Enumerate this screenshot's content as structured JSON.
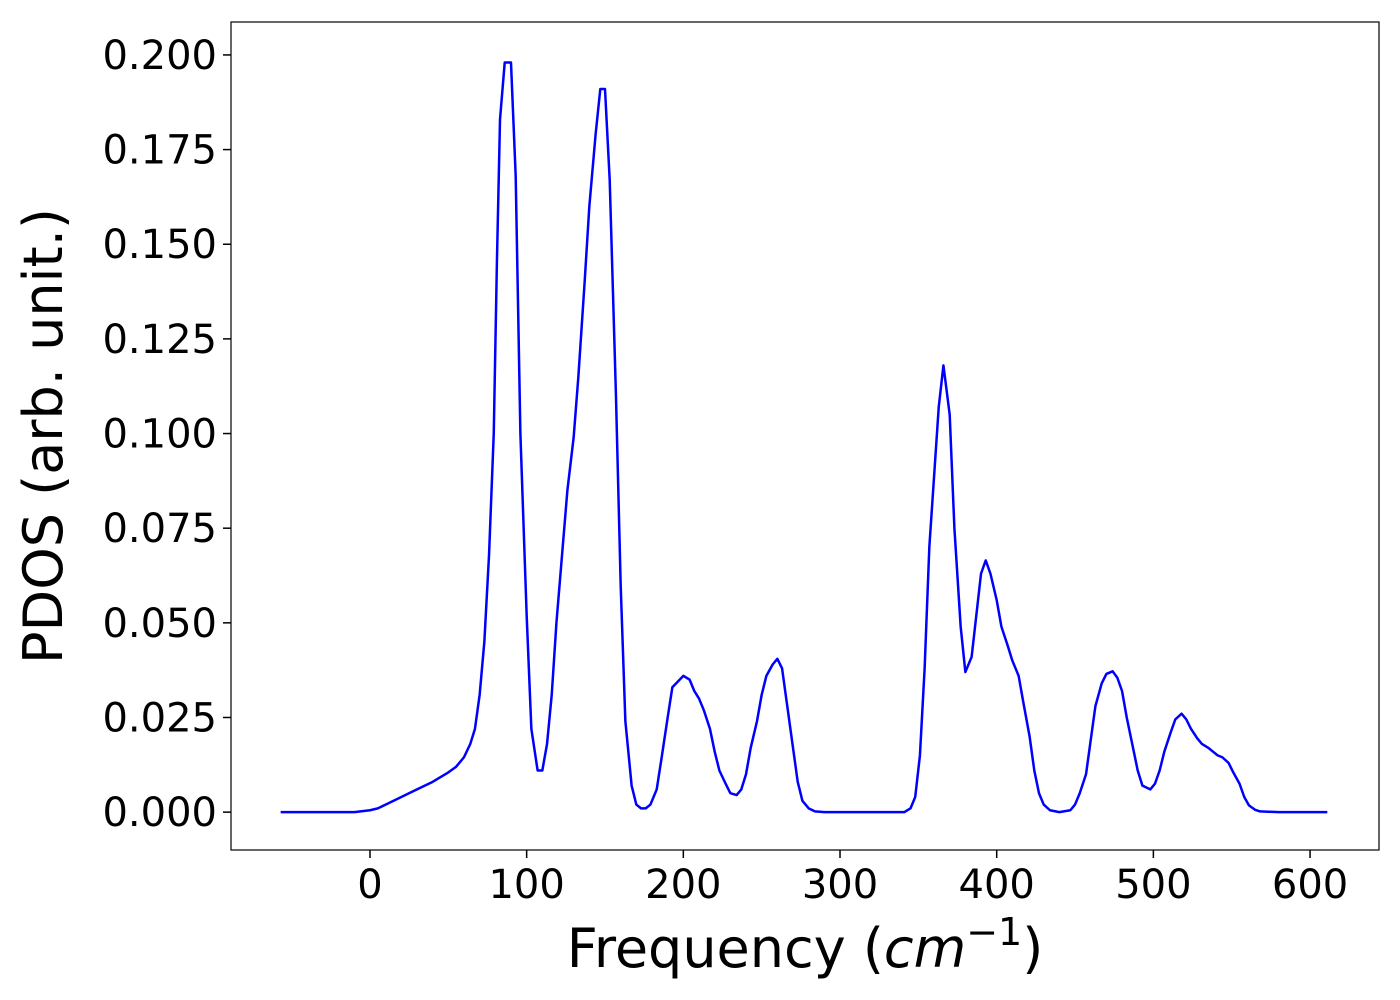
{
  "chart_data": {
    "type": "line",
    "xlabel": [
      "Frequency (",
      "cm",
      "−1",
      ")"
    ],
    "ylabel": "PDOS (arb. unit.)",
    "xlim": [
      -88.7,
      644
    ],
    "ylim": [
      -0.01,
      0.2087
    ],
    "xticks": [
      0,
      100,
      200,
      300,
      400,
      500,
      600
    ],
    "yticks": [
      {
        "value": 0,
        "label": "0.000"
      },
      {
        "value": 0.025,
        "label": "0.025"
      },
      {
        "value": 0.05,
        "label": "0.050"
      },
      {
        "value": 0.075,
        "label": "0.075"
      },
      {
        "value": 0.1,
        "label": "0.100"
      },
      {
        "value": 0.125,
        "label": "0.125"
      },
      {
        "value": 0.15,
        "label": "0.150"
      },
      {
        "value": 0.175,
        "label": "0.175"
      },
      {
        "value": 0.2,
        "label": "0.200"
      }
    ],
    "grid": false,
    "x": [
      -57,
      -10,
      0,
      5,
      10,
      20,
      30,
      40,
      50,
      55,
      60,
      64,
      67,
      70,
      73,
      76,
      79,
      81,
      83,
      86,
      90,
      93,
      96,
      100,
      103,
      107,
      110,
      113,
      116,
      119,
      123,
      126,
      130,
      133,
      137,
      140,
      144,
      147,
      150,
      153,
      157,
      160,
      163,
      167,
      170,
      173,
      176,
      179,
      183,
      186,
      190,
      193,
      200,
      204,
      207,
      210,
      213,
      217,
      220,
      223,
      227,
      230,
      234,
      237,
      240,
      243,
      247,
      250,
      253,
      257,
      260,
      263,
      266,
      270,
      273,
      276,
      280,
      284,
      290,
      300,
      320,
      341,
      345,
      348,
      351,
      354,
      357,
      363,
      366,
      370,
      373,
      377,
      380,
      384,
      387,
      390,
      393,
      396,
      400,
      403,
      407,
      410,
      414,
      417,
      421,
      424,
      427,
      430,
      434,
      440,
      447,
      450,
      453,
      457,
      460,
      463,
      467,
      470,
      474,
      477,
      480,
      483,
      487,
      490,
      493,
      498,
      501,
      504,
      507,
      511,
      514,
      518,
      521,
      524,
      528,
      531,
      535,
      538,
      541,
      544,
      548,
      551,
      555,
      558,
      561,
      565,
      568,
      580,
      611
    ],
    "series": [
      {
        "name": "PDOS",
        "color": "#0000ff",
        "values": [
          0,
          0,
          0.0005,
          0.001,
          0.002,
          0.004,
          0.006,
          0.008,
          0.0105,
          0.012,
          0.0145,
          0.018,
          0.022,
          0.031,
          0.045,
          0.068,
          0.1,
          0.145,
          0.183,
          0.198,
          0.198,
          0.168,
          0.1,
          0.052,
          0.022,
          0.011,
          0.011,
          0.018,
          0.031,
          0.05,
          0.07,
          0.085,
          0.099,
          0.115,
          0.14,
          0.16,
          0.179,
          0.191,
          0.191,
          0.167,
          0.11,
          0.06,
          0.024,
          0.007,
          0.002,
          0.001,
          0.001,
          0.002,
          0.006,
          0.014,
          0.025,
          0.033,
          0.036,
          0.035,
          0.032,
          0.03,
          0.027,
          0.022,
          0.016,
          0.011,
          0.0075,
          0.005,
          0.0045,
          0.006,
          0.01,
          0.017,
          0.024,
          0.031,
          0.036,
          0.039,
          0.0405,
          0.038,
          0.029,
          0.017,
          0.008,
          0.003,
          0.001,
          0.0002,
          0,
          0,
          0,
          0,
          0.001,
          0.004,
          0.015,
          0.038,
          0.07,
          0.107,
          0.118,
          0.105,
          0.075,
          0.049,
          0.037,
          0.041,
          0.052,
          0.063,
          0.0665,
          0.063,
          0.056,
          0.049,
          0.044,
          0.04,
          0.036,
          0.029,
          0.02,
          0.011,
          0.005,
          0.002,
          0.0005,
          0,
          0.0005,
          0.002,
          0.005,
          0.01,
          0.019,
          0.028,
          0.034,
          0.0365,
          0.0372,
          0.0355,
          0.032,
          0.025,
          0.017,
          0.011,
          0.007,
          0.006,
          0.0075,
          0.011,
          0.016,
          0.021,
          0.0245,
          0.026,
          0.0245,
          0.022,
          0.0195,
          0.018,
          0.017,
          0.016,
          0.015,
          0.0145,
          0.013,
          0.0105,
          0.0075,
          0.004,
          0.0018,
          0.0006,
          0.0002,
          0,
          0
        ]
      }
    ]
  }
}
